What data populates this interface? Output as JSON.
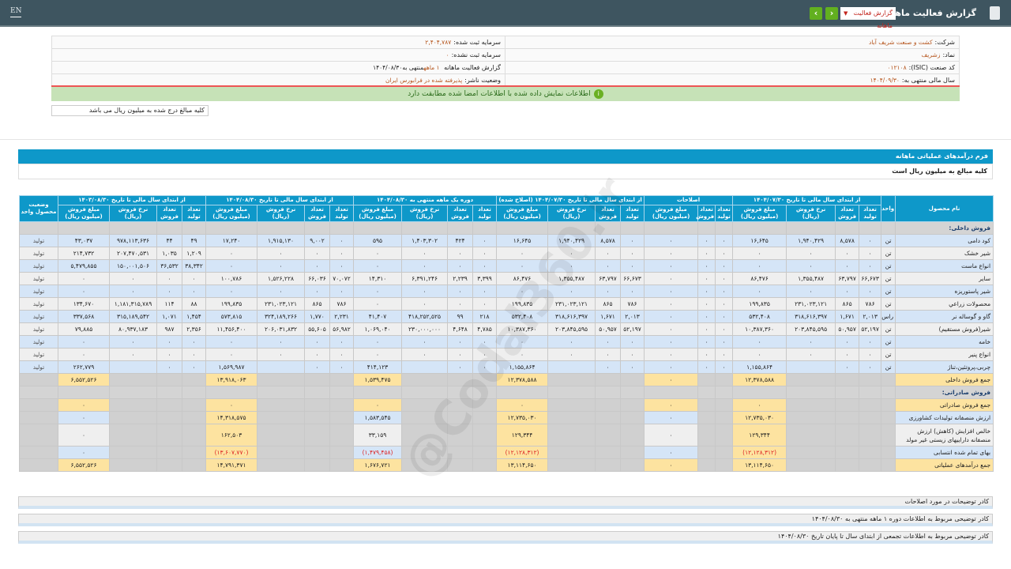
{
  "topbar": {
    "lang": "EN",
    "title": "گزارش فعالیت ماهانه",
    "select_value": "گزارش فعالیت ماهانه",
    "prev": "‹",
    "next": "›"
  },
  "info": {
    "company_label": "شرکت:",
    "company": "کشت و صنعت شریف آباد",
    "symbol_label": "نماد:",
    "symbol": "زشریف",
    "isic_label": "کد صنعت (ISIC):",
    "isic": "۰۱۲۱۰۸",
    "fy_label": "سال مالی منتهی به:",
    "fy": "۱۴۰۴/۰۹/۳۰",
    "capital_label": "سرمایه ثبت شده:",
    "capital": "۲,۴۰۴,۷۸۷",
    "unreg_label": "سرمایه ثبت نشده:",
    "unreg": "۰",
    "report_label": "گزارش فعالیت ماهانه",
    "report": "۱ ماهه",
    "report_suffix": "منتهی به۱۴۰۴/۰۸/۳۰",
    "status_label": "وضعیت ناشر:",
    "status": "پذیرفته شده در فرابورس ایران"
  },
  "verified": "اطلاعات نمایش داده شده با اطلاعات امضا شده مطابقت دارد",
  "amounts_note": "کلیه مبالغ درج شده به میلیون ریال می باشد",
  "form": {
    "title": "فرم درآمدهای عملیاتی ماهانه",
    "subtitle": "کلیه مبالغ به میلیون ریال است"
  },
  "table": {
    "h_name": "نام محصول",
    "h_unit": "واحد",
    "h_status": "وضعیت محصول واحد",
    "groups": [
      "از ابتدای سال مالی تا تاریخ ۱۴۰۴/۰۷/۳۰",
      "اصلاحات",
      "از ابتدای سال مالی تا تاریخ ۱۴۰۴/۰۷/۳۰ (اصلاح شده)",
      "دوره یک ماهه منتهی به ۱۴۰۴/۰۸/۳۰",
      "از ابتدای سال مالی تا تاریخ ۱۴۰۴/۰۸/۳۰",
      "از ابتدای سال مالی تا تاریخ ۱۴۰۳/۰۸/۳۰"
    ],
    "sub4": [
      "تعداد تولید",
      "تعداد فروش",
      "نرخ فروش (ریال)",
      "مبلغ فروش (میلیون ریال)"
    ],
    "sub3": [
      "تعداد تولید",
      "تعداد فروش",
      "مبلغ فروش (میلیون ریال)"
    ],
    "domestic_label": "فروش داخلی:",
    "rows": [
      {
        "name": "کود دامی",
        "unit": "تن",
        "v": [
          "۰",
          "۸,۵۷۸",
          "۱,۹۴۰,۴۲۹",
          "۱۶,۶۴۵",
          "۰",
          "۰",
          "۰",
          "۰",
          "۸,۵۷۸",
          "۱,۹۴۰,۴۲۹",
          "۱۶,۶۴۵",
          "۰",
          "۴۲۴",
          "۱,۴۰۳,۳۰۲",
          "۵۹۵",
          "۰",
          "۹,۰۰۲",
          "۱,۹۱۵,۱۳۰",
          "۱۷,۲۴۰",
          "۴۹",
          "۴۴",
          "۹۷۸,۱۱۳,۶۳۶",
          "۴۳,۰۳۷"
        ],
        "status": "تولید"
      },
      {
        "name": "شیر خشک",
        "unit": "تن",
        "v": [
          "۰",
          "۰",
          "۰",
          "۰",
          "۰",
          "۰",
          "۰",
          "۰",
          "۰",
          "۰",
          "۰",
          "۰",
          "۰",
          "۰",
          "۰",
          "۰",
          "۰",
          "۰",
          "۰",
          "۱,۲۰۹",
          "۱,۰۳۵",
          "۲۰۷,۴۷۰,۵۳۱",
          "۲۱۴,۷۳۲"
        ],
        "status": "تولید"
      },
      {
        "name": "انواع ماست",
        "unit": "تن",
        "v": [
          "۰",
          "۰",
          "۰",
          "۰",
          "۰",
          "۰",
          "۰",
          "۰",
          "۰",
          "۰",
          "۰",
          "۰",
          "۰",
          "۰",
          "۰",
          "۰",
          "۰",
          "۰",
          "۰",
          "۳۸,۳۴۲",
          "۳۶,۵۳۲",
          "۱۵۰,۰۰۱,۵۰۶",
          "۵,۴۷۹,۸۵۵"
        ],
        "status": "تولید"
      },
      {
        "name": "سایر",
        "unit": "تن",
        "v": [
          "۶۶,۶۷۳",
          "۶۳,۷۹۷",
          "۱,۳۵۵,۴۸۷",
          "۸۶,۴۷۶",
          "۰",
          "۰",
          "۰",
          "۶۶,۶۷۳",
          "۶۳,۷۹۷",
          "۱,۳۵۵,۴۸۷",
          "۸۶,۴۷۶",
          "۳,۳۹۹",
          "۲,۲۳۹",
          "۶,۳۹۱,۲۴۶",
          "۱۴,۳۱۰",
          "۷۰,۰۷۲",
          "۶۶,۰۳۶",
          "۱,۵۲۶,۲۲۸",
          "۱۰۰,۷۸۶",
          "۰",
          "۰",
          "۰",
          "۰"
        ],
        "status": "تولید"
      },
      {
        "name": "شیر پاستوریزه",
        "unit": "تن",
        "v": [
          "۰",
          "۰",
          "۰",
          "۰",
          "۰",
          "۰",
          "۰",
          "۰",
          "۰",
          "۰",
          "۰",
          "۰",
          "۰",
          "۰",
          "۰",
          "۰",
          "۰",
          "۰",
          "۰",
          "۰",
          "۰",
          "۰",
          "۰"
        ],
        "status": "تولید"
      },
      {
        "name": "محصولات زراعي",
        "unit": "تن",
        "v": [
          "۷۸۶",
          "۸۶۵",
          "۲۳۱,۰۲۳,۱۲۱",
          "۱۹۹,۸۳۵",
          "۰",
          "۰",
          "۰",
          "۷۸۶",
          "۸۶۵",
          "۲۳۱,۰۲۳,۱۲۱",
          "۱۹۹,۸۳۵",
          "۰",
          "۰",
          "۰",
          "۰",
          "۷۸۶",
          "۸۶۵",
          "۲۳۱,۰۲۳,۱۲۱",
          "۱۹۹,۸۳۵",
          "۸۸",
          "۱۱۴",
          "۱,۱۸۱,۳۱۵,۷۸۹",
          "۱۳۴,۶۷۰"
        ],
        "status": "تولید"
      },
      {
        "name": "گاو و گوساله نر",
        "unit": "راس",
        "v": [
          "۲,۰۱۳",
          "۱,۶۷۱",
          "۳۱۸,۶۱۶,۳۹۷",
          "۵۳۲,۴۰۸",
          "۰",
          "۰",
          "۰",
          "۲,۰۱۳",
          "۱,۶۷۱",
          "۳۱۸,۶۱۶,۳۹۷",
          "۵۳۲,۴۰۸",
          "۲۱۸",
          "۹۹",
          "۴۱۸,۲۵۲,۵۲۵",
          "۴۱,۴۰۷",
          "۲,۲۳۱",
          "۱,۷۷۰",
          "۳۲۴,۱۸۹,۲۶۶",
          "۵۷۳,۸۱۵",
          "۱,۴۵۴",
          "۱,۰۷۱",
          "۳۱۵,۱۸۹,۵۴۲",
          "۳۳۷,۵۶۸"
        ],
        "status": "تولید"
      },
      {
        "name": "شیر(فروش مستقیم)",
        "unit": "تن",
        "v": [
          "۵۲,۱۹۷",
          "۵۰,۹۵۷",
          "۲۰۳,۸۴۵,۵۹۵",
          "۱۰,۳۸۷,۳۶۰",
          "۰",
          "۰",
          "۰",
          "۵۲,۱۹۷",
          "۵۰,۹۵۷",
          "۲۰۳,۸۴۵,۵۹۵",
          "۱۰,۳۸۷,۳۶۰",
          "۴,۷۸۵",
          "۴,۶۴۸",
          "۲۳۰,۰۰۰,۰۰۰",
          "۱,۰۶۹,۰۴۰",
          "۵۶,۹۸۲",
          "۵۵,۶۰۵",
          "۲۰۶,۰۳۱,۸۳۲",
          "۱۱,۴۵۶,۴۰۰",
          "۲,۳۵۶",
          "۹۸۷",
          "۸۰,۹۳۷,۱۸۳",
          "۷۹,۸۸۵"
        ],
        "status": "تولید"
      },
      {
        "name": "خامه",
        "unit": "تن",
        "v": [
          "۰",
          "۰",
          "۰",
          "۰",
          "۰",
          "۰",
          "۰",
          "۰",
          "۰",
          "۰",
          "۰",
          "۰",
          "۰",
          "۰",
          "۰",
          "۰",
          "۰",
          "۰",
          "۰",
          "۰",
          "۰",
          "۰",
          "۰"
        ],
        "status": "تولید"
      },
      {
        "name": "انواع پنیر",
        "unit": "تن",
        "v": [
          "۰",
          "۰",
          "۰",
          "۰",
          "۰",
          "۰",
          "۰",
          "۰",
          "۰",
          "۰",
          "۰",
          "۰",
          "۰",
          "۰",
          "۰",
          "۰",
          "۰",
          "۰",
          "۰",
          "۰",
          "۰",
          "۰",
          "۰"
        ],
        "status": "تولید"
      },
      {
        "name": "چربی،پروتئین،تناژ",
        "unit": "تن",
        "v": [
          "۰",
          "۰",
          "",
          "۱,۱۵۵,۸۶۴",
          "۰",
          "۰",
          "۰",
          "۰",
          "۰",
          "",
          "۱,۱۵۵,۸۶۴",
          "۰",
          "۰",
          "",
          "۴۱۴,۱۲۳",
          "۰",
          "۰",
          "",
          "۱,۵۶۹,۹۸۷",
          "۰",
          "۰",
          "",
          "۲۶۲,۷۷۹"
        ],
        "status": "تولید"
      }
    ],
    "summary": [
      {
        "name": "جمع فروش داخلی",
        "vals": [
          "۱۲,۳۷۸,۵۸۸",
          "۰",
          "۱۲,۳۷۸,۵۸۸",
          "۱,۵۳۹,۴۷۵",
          "۱۳,۹۱۸,۰۶۳",
          "۶,۵۵۲,۵۲۶"
        ],
        "cls": [
          "y",
          "y",
          "y",
          "y",
          "y",
          "y"
        ],
        "name_cls": "y"
      },
      {
        "section": "فروش صادراتی:"
      },
      {
        "name": "جمع فروش صادراتی",
        "vals": [
          "۰",
          "۰",
          "۰",
          "۰",
          "۰",
          "۰"
        ],
        "cls": [
          "y",
          "y",
          "y",
          "y",
          "y",
          "y"
        ],
        "name_cls": "y"
      },
      {
        "name": "ارزش منصفانه تولیدات کشاورزی",
        "vals": [
          "۱۲,۷۳۵,۰۳۰",
          "۰",
          "۱۲,۷۳۵,۰۳۰",
          "۱,۵۸۳,۵۴۵",
          "۱۴,۳۱۸,۵۷۵",
          "۰"
        ],
        "cls": [
          "y",
          "bl",
          "y",
          "bl",
          "y",
          "bl"
        ],
        "name_cls": "bl"
      },
      {
        "name": "خالص افزایش (کاهش) ارزش منصفانه داراییهای زیستی غیر مولد",
        "vals": [
          "۱۲۹,۳۴۴",
          "۰",
          "۱۲۹,۳۴۴",
          "۳۳,۱۵۹",
          "۱۶۲,۵۰۳",
          "۰"
        ],
        "cls": [
          "y",
          "lt",
          "y",
          "lt",
          "y",
          "lt"
        ],
        "name_cls": "lt",
        "tall": true
      },
      {
        "name": "بهای تمام شده انتسابی",
        "vals": [
          "(۱۲,۱۲۸,۳۱۲)",
          "۰",
          "(۱۲,۱۲۸,۳۱۲)",
          "(۱,۴۷۹,۴۵۸)",
          "(۱۳,۶۰۷,۷۷۰)",
          "۰"
        ],
        "cls": [
          "y neg",
          "bl",
          "y neg",
          "bl neg",
          "y neg",
          "bl"
        ],
        "name_cls": "bl"
      },
      {
        "name": "جمع درآمدهای عملیاتی",
        "vals": [
          "۱۳,۱۱۴,۶۵۰",
          "۰",
          "۱۳,۱۱۴,۶۵۰",
          "۱,۶۷۶,۷۲۱",
          "۱۴,۷۹۱,۳۷۱",
          "۶,۵۵۲,۵۲۶"
        ],
        "cls": [
          "y",
          "y",
          "y",
          "y",
          "y",
          "y"
        ],
        "name_cls": "y"
      }
    ]
  },
  "notes": [
    "کادر توضیحات در مورد اصلاحات",
    "کادر توضیحی مربوط به اطلاعات دوره ۱ ماهه منتهی به ۱۴۰۴/۰۸/۳۰",
    "کادر توضیحی مربوط به اطلاعات تجمعی از ابتدای سال تا پایان تاریخ ۱۴۰۴/۰۸/۳۰"
  ],
  "watermark": "@Codal360.ir",
  "colors": {
    "topbar": "#3e5560",
    "header": "#0e98c9",
    "row_blue": "#d5e5f7",
    "total_yellow": "#fde3a0",
    "negative": "#dd2222",
    "nav_green": "#62b01f"
  }
}
